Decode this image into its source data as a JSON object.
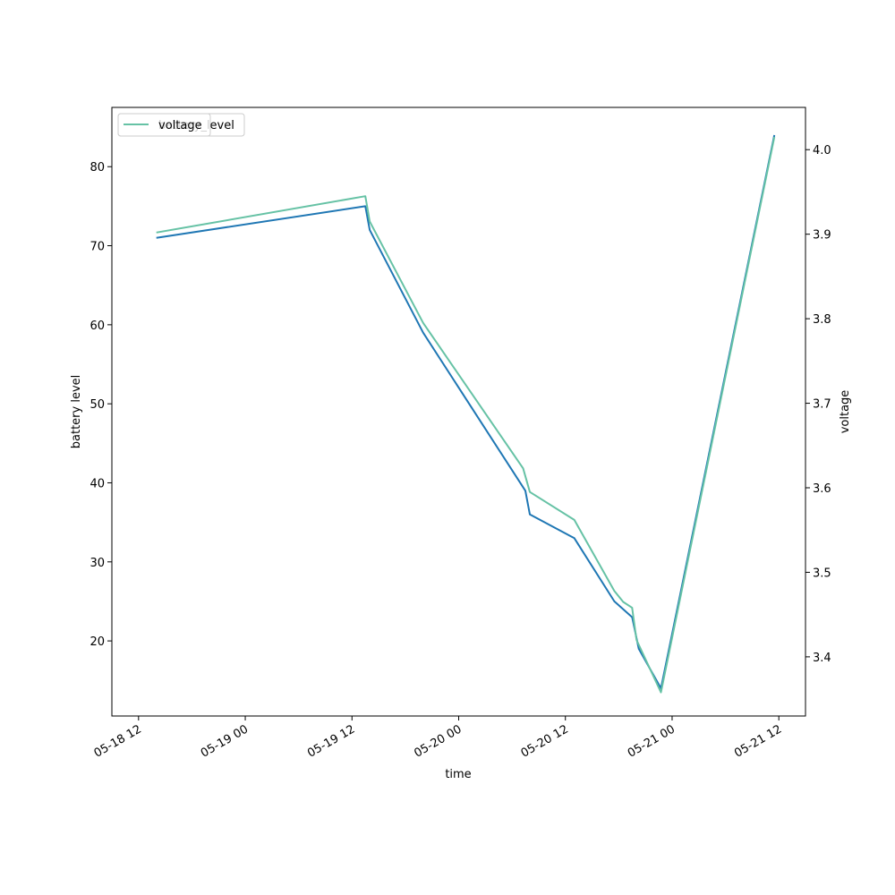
{
  "chart_data": {
    "type": "line",
    "xlabel": "time",
    "ylabel_left": "battery level",
    "ylabel_right": "voltage",
    "xlim": [
      "2024-05-18T09:00",
      "2024-05-21T15:00"
    ],
    "ylim_left": [
      10.5,
      87.5
    ],
    "ylim_right": [
      3.33,
      4.05
    ],
    "x_ticks": [
      {
        "t": "2024-05-18T12:00",
        "label": "05-18 12"
      },
      {
        "t": "2024-05-19T00:00",
        "label": "05-19 00"
      },
      {
        "t": "2024-05-19T12:00",
        "label": "05-19 12"
      },
      {
        "t": "2024-05-20T00:00",
        "label": "05-20 00"
      },
      {
        "t": "2024-05-20T12:00",
        "label": "05-20 12"
      },
      {
        "t": "2024-05-21T00:00",
        "label": "05-21 00"
      },
      {
        "t": "2024-05-21T12:00",
        "label": "05-21 12"
      }
    ],
    "y_ticks_left": [
      20,
      30,
      40,
      50,
      60,
      70,
      80
    ],
    "y_ticks_right": [
      "3.4",
      "3.5",
      "3.6",
      "3.7",
      "3.8",
      "3.9",
      "4.0"
    ],
    "series": [
      {
        "name": "battery_level",
        "axis": "left",
        "color": "#1f77b4",
        "points": [
          {
            "t": "2024-05-18T14:00",
            "v": 71
          },
          {
            "t": "2024-05-19T13:30",
            "v": 75
          },
          {
            "t": "2024-05-19T14:00",
            "v": 72
          },
          {
            "t": "2024-05-19T20:00",
            "v": 59
          },
          {
            "t": "2024-05-20T07:30",
            "v": 39
          },
          {
            "t": "2024-05-20T08:00",
            "v": 36
          },
          {
            "t": "2024-05-20T13:00",
            "v": 33
          },
          {
            "t": "2024-05-20T17:30",
            "v": 25
          },
          {
            "t": "2024-05-20T19:30",
            "v": 23
          },
          {
            "t": "2024-05-20T20:15",
            "v": 19
          },
          {
            "t": "2024-05-20T22:45",
            "v": 14
          },
          {
            "t": "2024-05-21T11:30",
            "v": 84
          }
        ]
      },
      {
        "name": "voltage",
        "axis": "right",
        "color": "#66c2a5",
        "points": [
          {
            "t": "2024-05-18T14:00",
            "v": 3.902
          },
          {
            "t": "2024-05-19T13:30",
            "v": 3.945
          },
          {
            "t": "2024-05-19T14:00",
            "v": 3.915
          },
          {
            "t": "2024-05-19T20:00",
            "v": 3.795
          },
          {
            "t": "2024-05-20T07:15",
            "v": 3.623
          },
          {
            "t": "2024-05-20T08:00",
            "v": 3.595
          },
          {
            "t": "2024-05-20T13:00",
            "v": 3.562
          },
          {
            "t": "2024-05-20T17:30",
            "v": 3.478
          },
          {
            "t": "2024-05-20T18:30",
            "v": 3.465
          },
          {
            "t": "2024-05-20T19:30",
            "v": 3.458
          },
          {
            "t": "2024-05-20T20:00",
            "v": 3.42
          },
          {
            "t": "2024-05-20T22:45",
            "v": 3.358
          },
          {
            "t": "2024-05-21T11:30",
            "v": 4.015
          }
        ]
      }
    ],
    "legend": {
      "placement": "upper left",
      "entries": [
        "battery_level",
        "voltage"
      ],
      "overlapping": true
    },
    "grid": false
  }
}
